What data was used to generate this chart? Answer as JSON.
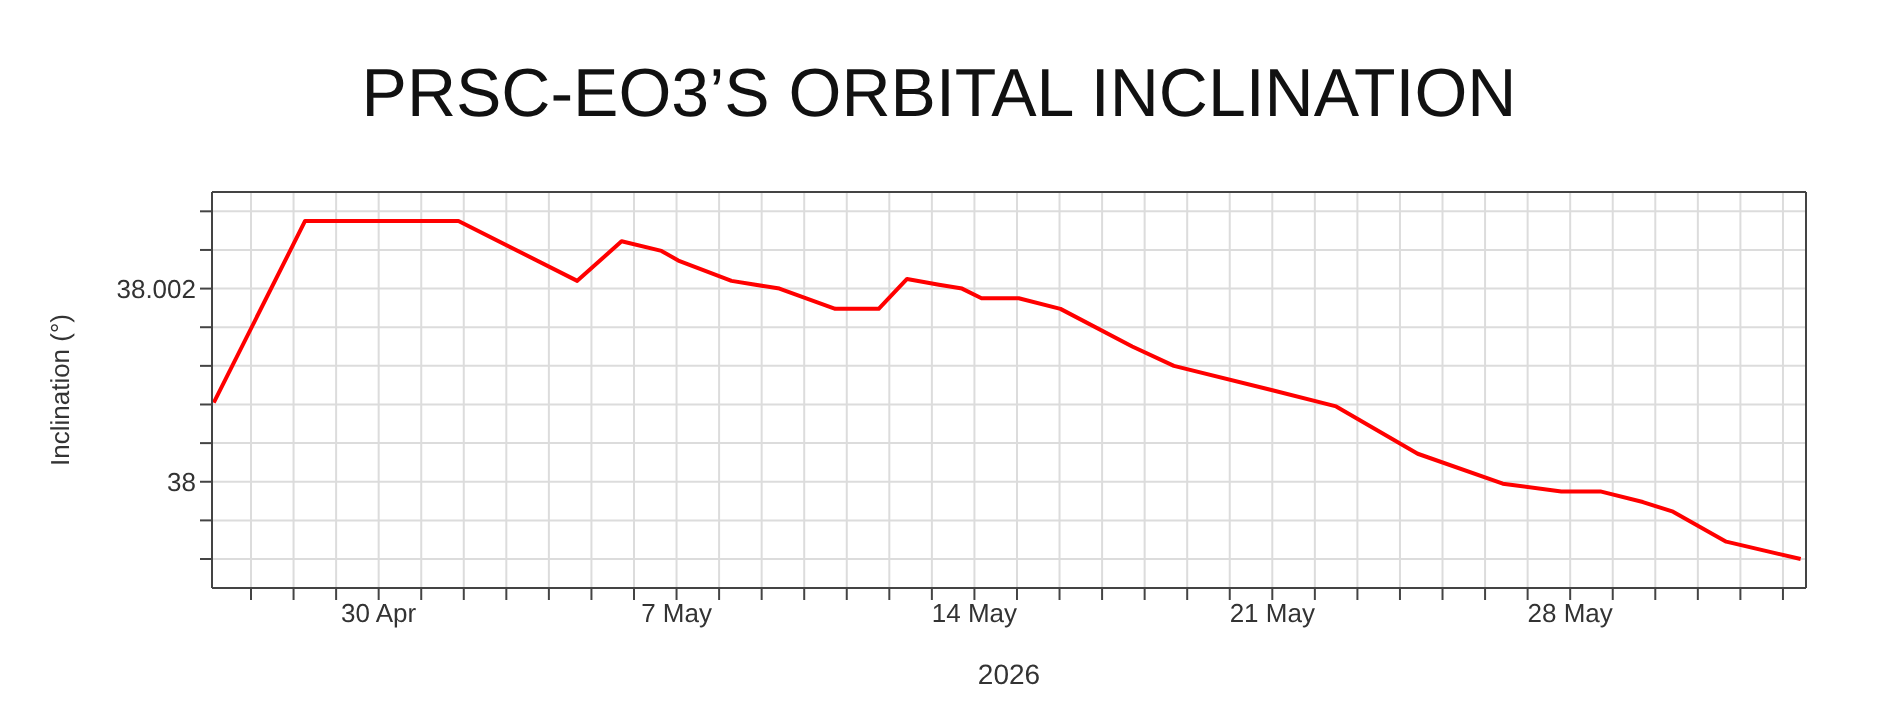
{
  "chart_data": {
    "type": "line",
    "title": "PRSC-EO3’S ORBITAL INCLINATION",
    "xlabel": "2026",
    "ylabel": "Inclination (°)",
    "x": [
      "2026-04-26T03:00",
      "2026-04-28T06:30",
      "2026-05-01T21:00",
      "2026-05-04T16:00",
      "2026-05-05T17:00",
      "2026-05-06T15:30",
      "2026-05-07T01:00",
      "2026-05-08T07:00",
      "2026-05-09T10:00",
      "2026-05-10T17:30",
      "2026-05-11T18:00",
      "2026-05-12T10:00",
      "2026-05-13T04:00",
      "2026-05-13T17:00",
      "2026-05-14T04:00",
      "2026-05-15T01:00",
      "2026-05-16T00:30",
      "2026-05-17T17:00",
      "2026-05-18T16:30",
      "2026-05-20T23:30",
      "2026-05-22T12:00",
      "2026-05-24T10:00",
      "2026-05-26T10:00",
      "2026-05-27T19:00",
      "2026-05-28T17:00",
      "2026-05-29T17:00",
      "2026-05-30T10:00",
      "2026-05-31T16:00",
      "2026-06-02T10:00"
    ],
    "series": [
      {
        "color": "#ff0000",
        "values": [
          38.00082,
          38.0027,
          38.0027,
          38.00208,
          38.00249,
          38.00239,
          38.00229,
          38.00208,
          38.002,
          38.00179,
          38.00179,
          38.0021,
          38.00204,
          38.002,
          38.0019,
          38.0019,
          38.00179,
          38.0014,
          38.0012,
          38.00095,
          38.00078,
          38.00029,
          37.99998,
          37.9999,
          37.9999,
          37.99979,
          37.99969,
          37.99938,
          37.9992
        ]
      }
    ],
    "xlim": [
      "2026-04-26T02:00",
      "2026-06-02T13:00"
    ],
    "xticks": [
      {
        "value": "2026-04-27",
        "label": null
      },
      {
        "value": "2026-04-28",
        "label": null
      },
      {
        "value": "2026-04-29",
        "label": null
      },
      {
        "value": "2026-04-30",
        "label": "30 Apr"
      },
      {
        "value": "2026-05-01",
        "label": null
      },
      {
        "value": "2026-05-02",
        "label": null
      },
      {
        "value": "2026-05-03",
        "label": null
      },
      {
        "value": "2026-05-04",
        "label": null
      },
      {
        "value": "2026-05-05",
        "label": null
      },
      {
        "value": "2026-05-06",
        "label": null
      },
      {
        "value": "2026-05-07",
        "label": "7 May"
      },
      {
        "value": "2026-05-08",
        "label": null
      },
      {
        "value": "2026-05-09",
        "label": null
      },
      {
        "value": "2026-05-10",
        "label": null
      },
      {
        "value": "2026-05-11",
        "label": null
      },
      {
        "value": "2026-05-12",
        "label": null
      },
      {
        "value": "2026-05-13",
        "label": null
      },
      {
        "value": "2026-05-14",
        "label": "14 May"
      },
      {
        "value": "2026-05-15",
        "label": null
      },
      {
        "value": "2026-05-16",
        "label": null
      },
      {
        "value": "2026-05-17",
        "label": null
      },
      {
        "value": "2026-05-18",
        "label": null
      },
      {
        "value": "2026-05-19",
        "label": null
      },
      {
        "value": "2026-05-20",
        "label": null
      },
      {
        "value": "2026-05-21",
        "label": "21 May"
      },
      {
        "value": "2026-05-22",
        "label": null
      },
      {
        "value": "2026-05-23",
        "label": null
      },
      {
        "value": "2026-05-24",
        "label": null
      },
      {
        "value": "2026-05-25",
        "label": null
      },
      {
        "value": "2026-05-26",
        "label": null
      },
      {
        "value": "2026-05-27",
        "label": null
      },
      {
        "value": "2026-05-28",
        "label": "28 May"
      },
      {
        "value": "2026-05-29",
        "label": null
      },
      {
        "value": "2026-05-30",
        "label": null
      },
      {
        "value": "2026-05-31",
        "label": null
      },
      {
        "value": "2026-06-01",
        "label": null
      },
      {
        "value": "2026-06-02",
        "label": null
      }
    ],
    "ylim": [
      37.9989,
      38.003
    ],
    "yticks": [
      {
        "value": 37.9992,
        "label": null
      },
      {
        "value": 37.9996,
        "label": null
      },
      38,
      {
        "value": 38.0004,
        "label": null
      },
      {
        "value": 38.0008,
        "label": null
      },
      {
        "value": 38.0012,
        "label": null
      },
      {
        "value": 38.0016,
        "label": null
      },
      38.002,
      {
        "value": 38.0024,
        "label": null
      },
      {
        "value": 38.0028,
        "label": null
      }
    ],
    "grid": true,
    "marker": "none",
    "line_style": "solid"
  }
}
